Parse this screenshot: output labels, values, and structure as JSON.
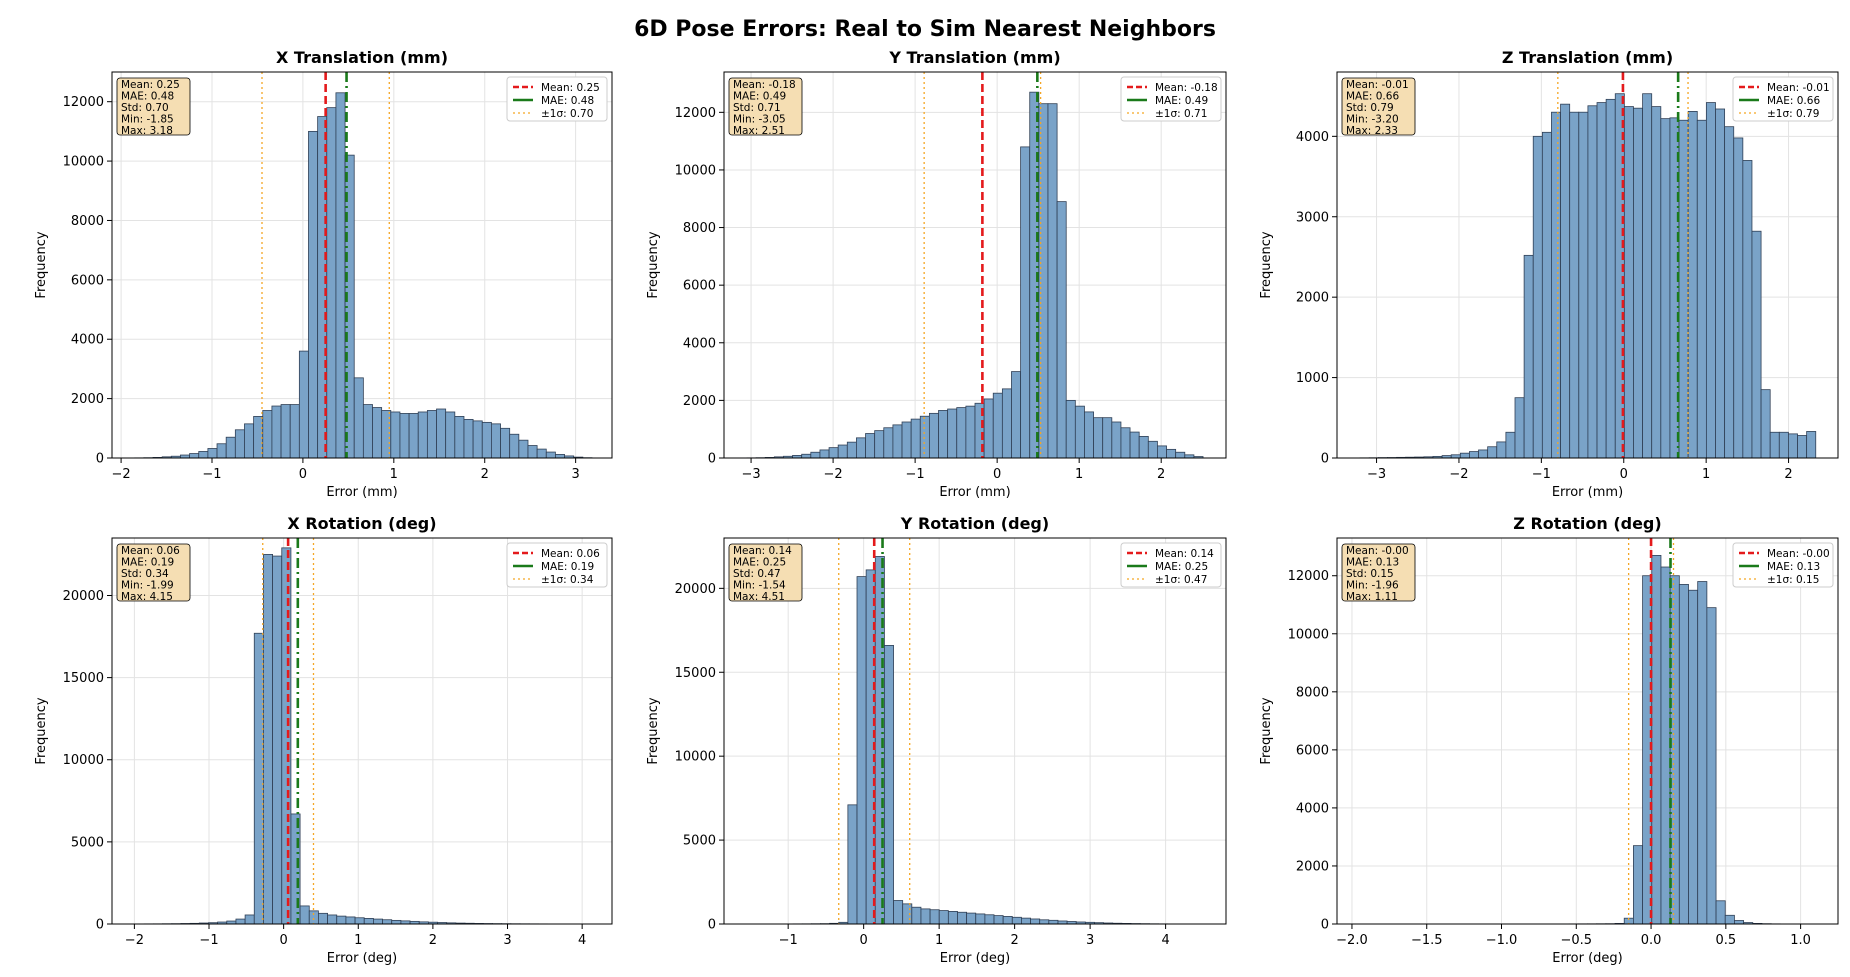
{
  "figure": {
    "title": "6D Pose Errors: Real to Sim Nearest Neighbors"
  },
  "colors": {
    "bar_fill": "#7aa3c8",
    "bar_edge": "#2f3f55",
    "mean_line": "#e41a1c",
    "mae_line": "#1a7a1a",
    "sigma_line": "#f5a623",
    "stats_box_fill": "#f5deb3",
    "grid": "#e3e3e3"
  },
  "chart_data": [
    {
      "type": "bar",
      "title": "X Translation (mm)",
      "xlabel": "Error (mm)",
      "ylabel": "Frequency",
      "xlim": [
        -2.1,
        3.4
      ],
      "ylim": [
        0,
        13000
      ],
      "xticks": [
        -2,
        -1,
        0,
        1,
        2,
        3
      ],
      "xtick_labels": [
        "−2",
        "−1",
        "0",
        "1",
        "2",
        "3"
      ],
      "yticks": [
        0,
        2000,
        4000,
        6000,
        8000,
        10000,
        12000
      ],
      "yticks_labels": [
        "0",
        "2000",
        "4000",
        "6000",
        "8000",
        "10000",
        "12000"
      ],
      "grid": true,
      "legend_position": "top-right",
      "bins": {
        "min": -1.85,
        "max": 3.18,
        "count": 50
      },
      "values": [
        5,
        10,
        20,
        40,
        60,
        100,
        150,
        220,
        320,
        480,
        700,
        950,
        1150,
        1400,
        1600,
        1750,
        1800,
        1800,
        3600,
        11000,
        11500,
        11800,
        12300,
        10200,
        2700,
        1800,
        1700,
        1600,
        1550,
        1500,
        1500,
        1550,
        1600,
        1650,
        1550,
        1400,
        1300,
        1250,
        1200,
        1150,
        1000,
        800,
        600,
        420,
        300,
        200,
        120,
        70,
        30,
        10
      ],
      "mean": 0.25,
      "mae": 0.48,
      "std": 0.7,
      "stats_text": [
        "Mean: 0.25",
        "MAE: 0.48",
        "Std: 0.70",
        "Min: -1.85",
        "Max: 3.18"
      ],
      "legend": [
        "Mean: 0.25",
        "MAE: 0.48",
        "±1σ: 0.70"
      ]
    },
    {
      "type": "bar",
      "title": "Y Translation (mm)",
      "xlabel": "Error (mm)",
      "ylabel": "Frequency",
      "xlim": [
        -3.33,
        2.79
      ],
      "ylim": [
        0,
        13400
      ],
      "xticks": [
        -3,
        -2,
        -1,
        0,
        1,
        2
      ],
      "xtick_labels": [
        "−3",
        "−2",
        "−1",
        "0",
        "1",
        "2"
      ],
      "yticks": [
        0,
        2000,
        4000,
        6000,
        8000,
        10000,
        12000
      ],
      "yticks_labels": [
        "0",
        "2000",
        "4000",
        "6000",
        "8000",
        "10000",
        "12000"
      ],
      "grid": true,
      "legend_position": "top-right",
      "bins": {
        "min": -3.05,
        "max": 2.51,
        "count": 50
      },
      "values": [
        5,
        10,
        20,
        40,
        60,
        90,
        130,
        200,
        280,
        360,
        450,
        550,
        700,
        850,
        950,
        1050,
        1150,
        1250,
        1350,
        1450,
        1550,
        1650,
        1700,
        1750,
        1800,
        1900,
        2050,
        2250,
        2400,
        3000,
        10800,
        12700,
        12300,
        12300,
        8900,
        2000,
        1800,
        1600,
        1400,
        1400,
        1250,
        1050,
        900,
        750,
        580,
        420,
        300,
        200,
        110,
        50
      ],
      "mean": -0.18,
      "mae": 0.49,
      "std": 0.71,
      "stats_text": [
        "Mean: -0.18",
        "MAE: 0.49",
        "Std: 0.71",
        "Min: -3.05",
        "Max: 2.51"
      ],
      "legend": [
        "Mean: -0.18",
        "MAE: 0.49",
        "±1σ: 0.71"
      ]
    },
    {
      "type": "bar",
      "title": "Z Translation (mm)",
      "xlabel": "Error (mm)",
      "ylabel": "Frequency",
      "xlim": [
        -3.48,
        2.6
      ],
      "ylim": [
        0,
        4800
      ],
      "xticks": [
        -3,
        -2,
        -1,
        0,
        1,
        2
      ],
      "xtick_labels": [
        "−3",
        "−2",
        "−1",
        "0",
        "1",
        "2"
      ],
      "yticks": [
        0,
        1000,
        2000,
        3000,
        4000
      ],
      "yticks_labels": [
        "0",
        "1000",
        "2000",
        "3000",
        "4000"
      ],
      "grid": true,
      "legend_position": "top-right",
      "bins": {
        "min": -3.2,
        "max": 2.33,
        "count": 50
      },
      "values": [
        2,
        3,
        5,
        6,
        8,
        10,
        12,
        15,
        20,
        30,
        40,
        60,
        80,
        100,
        140,
        200,
        320,
        750,
        2520,
        4000,
        4050,
        4300,
        4400,
        4300,
        4300,
        4380,
        4420,
        4460,
        4530,
        4370,
        4350,
        4530,
        4370,
        4220,
        4230,
        4200,
        4310,
        4200,
        4420,
        4340,
        4120,
        3980,
        3700,
        2820,
        850,
        320,
        320,
        300,
        280,
        330
      ],
      "mean": -0.01,
      "mae": 0.66,
      "std": 0.79,
      "stats_text": [
        "Mean: -0.01",
        "MAE: 0.66",
        "Std: 0.79",
        "Min: -3.20",
        "Max: 2.33"
      ],
      "legend": [
        "Mean: -0.01",
        "MAE: 0.66",
        "±1σ: 0.79"
      ]
    },
    {
      "type": "bar",
      "title": "X Rotation (deg)",
      "xlabel": "Error (deg)",
      "ylabel": "Frequency",
      "xlim": [
        -2.3,
        4.4
      ],
      "ylim": [
        0,
        23500
      ],
      "xticks": [
        -2,
        -1,
        0,
        1,
        2,
        3,
        4
      ],
      "xtick_labels": [
        "−2",
        "−1",
        "0",
        "1",
        "2",
        "3",
        "4"
      ],
      "yticks": [
        0,
        5000,
        10000,
        15000,
        20000
      ],
      "yticks_labels": [
        "0",
        "5000",
        "10000",
        "15000",
        "20000"
      ],
      "grid": true,
      "legend_position": "top-right",
      "bins": {
        "min": -1.99,
        "max": 4.15,
        "count": 50
      },
      "values": [
        5,
        8,
        10,
        15,
        20,
        30,
        40,
        60,
        80,
        120,
        180,
        300,
        550,
        17700,
        22500,
        22400,
        22900,
        6700,
        1100,
        800,
        650,
        550,
        480,
        430,
        380,
        340,
        300,
        260,
        220,
        190,
        160,
        130,
        110,
        90,
        70,
        55,
        45,
        35,
        28,
        22,
        18,
        14,
        11,
        9,
        7,
        5,
        4,
        3,
        2,
        2
      ],
      "mean": 0.06,
      "mae": 0.19,
      "std": 0.34,
      "stats_text": [
        "Mean: 0.06",
        "MAE: 0.19",
        "Std: 0.34",
        "Min: -1.99",
        "Max: 4.15"
      ],
      "legend": [
        "Mean: 0.06",
        "MAE: 0.19",
        "±1σ: 0.34"
      ]
    },
    {
      "type": "bar",
      "title": "Y Rotation (deg)",
      "xlabel": "Error (deg)",
      "ylabel": "Frequency",
      "xlim": [
        -1.85,
        4.8
      ],
      "ylim": [
        0,
        23000
      ],
      "xticks": [
        -1,
        0,
        1,
        2,
        3,
        4
      ],
      "xtick_labels": [
        "−1",
        "0",
        "1",
        "2",
        "3",
        "4"
      ],
      "yticks": [
        0,
        5000,
        10000,
        15000,
        20000
      ],
      "yticks_labels": [
        "0",
        "5000",
        "10000",
        "15000",
        "20000"
      ],
      "grid": true,
      "legend_position": "top-right",
      "bins": {
        "min": -1.54,
        "max": 4.51,
        "count": 50
      },
      "values": [
        2,
        3,
        4,
        5,
        6,
        8,
        10,
        15,
        20,
        40,
        100,
        7100,
        20700,
        21100,
        21900,
        16600,
        1400,
        1200,
        1000,
        900,
        850,
        800,
        750,
        700,
        650,
        600,
        550,
        500,
        450,
        400,
        350,
        300,
        250,
        220,
        180,
        150,
        120,
        100,
        80,
        60,
        45,
        35,
        25,
        18,
        12,
        8,
        5,
        3,
        2,
        1
      ],
      "mean": 0.14,
      "mae": 0.25,
      "std": 0.47,
      "stats_text": [
        "Mean: 0.14",
        "MAE: 0.25",
        "Std: 0.47",
        "Min: -1.54",
        "Max: 4.51"
      ],
      "legend": [
        "Mean: 0.14",
        "MAE: 0.25",
        "±1σ: 0.47"
      ]
    },
    {
      "type": "bar",
      "title": "Z Rotation (deg)",
      "xlabel": "Error (deg)",
      "ylabel": "Frequency",
      "xlim": [
        -2.1,
        1.25
      ],
      "ylim": [
        0,
        13300
      ],
      "xticks": [
        -2.0,
        -1.5,
        -1.0,
        -0.5,
        0.0,
        0.5,
        1.0
      ],
      "xtick_labels": [
        "−2.0",
        "−1.5",
        "−1.0",
        "−0.5",
        "0.0",
        "0.5",
        "1.0"
      ],
      "yticks": [
        0,
        2000,
        4000,
        6000,
        8000,
        10000,
        12000
      ],
      "yticks_labels": [
        "0",
        "2000",
        "4000",
        "6000",
        "8000",
        "10000",
        "12000"
      ],
      "grid": true,
      "legend_position": "top-right",
      "bins": {
        "min": -1.96,
        "max": 1.11,
        "count": 50
      },
      "values": [
        1,
        1,
        1,
        1,
        1,
        1,
        1,
        1,
        1,
        1,
        1,
        1,
        1,
        1,
        1,
        1,
        1,
        1,
        1,
        2,
        2,
        3,
        3,
        4,
        5,
        6,
        8,
        10,
        20,
        200,
        2700,
        12000,
        12700,
        12300,
        12000,
        11700,
        11500,
        11800,
        10900,
        800,
        300,
        120,
        50,
        20,
        10,
        5,
        3,
        2,
        1,
        1
      ],
      "mean": -0.0,
      "mae": 0.13,
      "std": 0.15,
      "stats_text": [
        "Mean: -0.00",
        "MAE: 0.13",
        "Std: 0.15",
        "Min: -1.96",
        "Max: 1.11"
      ],
      "legend": [
        "Mean: -0.00",
        "MAE: 0.13",
        "±1σ: 0.15"
      ]
    }
  ]
}
